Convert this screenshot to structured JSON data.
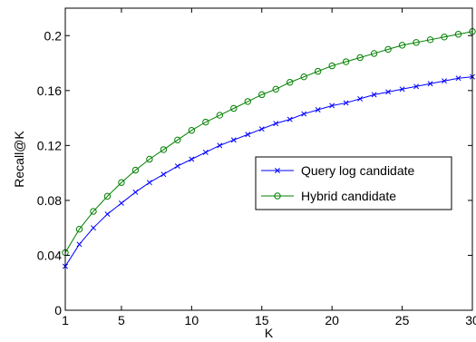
{
  "chart_data": {
    "type": "line",
    "title": "",
    "xlabel": "K",
    "ylabel": "Recall@K",
    "xlim": [
      1,
      30
    ],
    "ylim": [
      0,
      0.22
    ],
    "xticks": [
      1,
      5,
      10,
      15,
      20,
      25,
      30
    ],
    "xtick_labels": [
      "1",
      "5",
      "10",
      "15",
      "20",
      "25",
      "30"
    ],
    "yticks": [
      0,
      0.04,
      0.08,
      0.12,
      0.16,
      0.2
    ],
    "ytick_labels": [
      "0",
      "0.04",
      "0.08",
      "0.12",
      "0.16",
      "0.2"
    ],
    "grid": false,
    "legend_position": "center-right",
    "x": [
      1,
      2,
      3,
      4,
      5,
      6,
      7,
      8,
      9,
      10,
      11,
      12,
      13,
      14,
      15,
      16,
      17,
      18,
      19,
      20,
      21,
      22,
      23,
      24,
      25,
      26,
      27,
      28,
      29,
      30
    ],
    "series": [
      {
        "name": "Query log candidate",
        "color": "#0000ff",
        "marker": "x",
        "values": [
          0.032,
          0.048,
          0.06,
          0.07,
          0.078,
          0.086,
          0.093,
          0.099,
          0.105,
          0.11,
          0.115,
          0.12,
          0.124,
          0.128,
          0.132,
          0.136,
          0.139,
          0.143,
          0.146,
          0.149,
          0.151,
          0.154,
          0.157,
          0.159,
          0.161,
          0.163,
          0.165,
          0.167,
          0.169,
          0.17
        ]
      },
      {
        "name": "Hybrid candidate",
        "color": "#008000",
        "marker": "o",
        "values": [
          0.042,
          0.059,
          0.072,
          0.083,
          0.093,
          0.102,
          0.11,
          0.117,
          0.124,
          0.131,
          0.137,
          0.142,
          0.147,
          0.152,
          0.157,
          0.161,
          0.166,
          0.17,
          0.174,
          0.178,
          0.181,
          0.184,
          0.187,
          0.19,
          0.193,
          0.195,
          0.197,
          0.199,
          0.201,
          0.203
        ]
      }
    ]
  }
}
